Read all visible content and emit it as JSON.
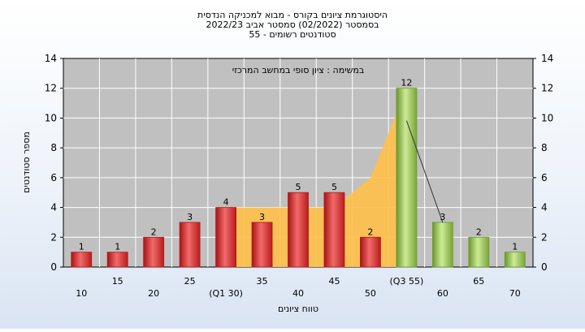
{
  "chart_data": {
    "type": "bar",
    "title_lines": [
      "היסטוגרמת ציונים בקורס - מבוא למכניקה הנדסית",
      "בסמסטר  (02/2022)  סמסטר אביב 2022/23",
      "סטודנטים רשומים - 55"
    ],
    "annotation": "במשימה : ציון סופי במחשב המרכזי",
    "ylabel": "מספר סטודנטים",
    "xlabel": "טווח ציונים",
    "ylim": [
      0,
      14
    ],
    "yticks": [
      0,
      2,
      4,
      6,
      8,
      10,
      12,
      14
    ],
    "grid": true,
    "categories": [
      "10",
      "15",
      "20",
      "25",
      "(Q1 30)",
      "35",
      "40",
      "45",
      "50",
      "(Q3 55)",
      "60",
      "65",
      "70"
    ],
    "values": [
      1,
      1,
      2,
      3,
      4,
      3,
      5,
      5,
      2,
      12,
      3,
      2,
      1
    ],
    "value_labels": [
      "1",
      "1",
      "2",
      "3",
      "4",
      "3",
      "5",
      "5",
      "2",
      "12",
      "3",
      "2",
      "1"
    ],
    "series_colors": [
      "red",
      "red",
      "red",
      "red",
      "red",
      "red",
      "red",
      "red",
      "red",
      "green",
      "green",
      "green",
      "green"
    ],
    "colors": {
      "plot_bg": "#c0c0c0",
      "grid": "#ffffff",
      "red_dark": "#b01818",
      "red_light": "#f06060",
      "green_dark": "#6e9a30",
      "green_light": "#c8e890",
      "band": "#ffc04a"
    },
    "band_values": [
      null,
      null,
      null,
      null,
      4,
      4,
      4,
      4,
      6,
      12,
      null,
      null,
      null
    ],
    "trend_line": [
      12,
      3
    ]
  }
}
